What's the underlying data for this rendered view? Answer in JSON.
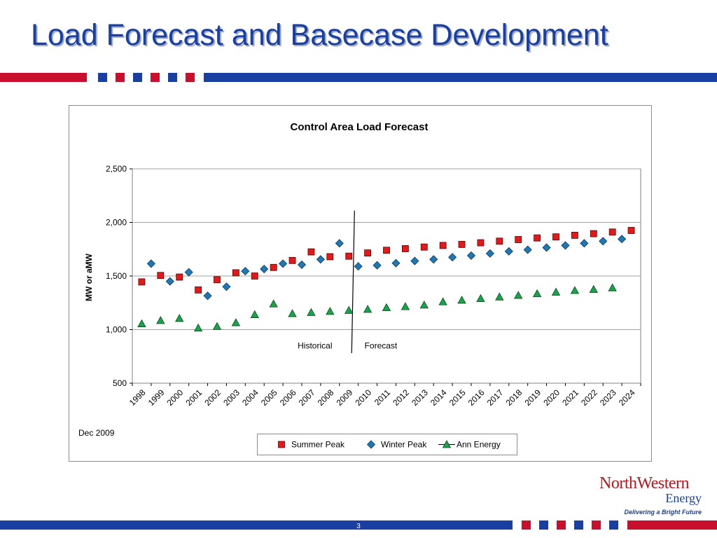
{
  "slide": {
    "title": "Load Forecast and Basecase Development",
    "date_note": "Dec 2009",
    "page_number": "3"
  },
  "logo": {
    "line1": "NorthWestern",
    "line2": "Energy",
    "tagline": "Delivering a Bright Future"
  },
  "colors": {
    "title_blue": "#1a3fa3",
    "bar_red": "#c8102e",
    "bar_blue": "#1a3fa3",
    "summer": "#e31a1c",
    "winter": "#1f78b4",
    "energy": "#1aa34a"
  },
  "chart_data": {
    "type": "scatter",
    "title": "Control Area Load Forecast",
    "ylabel": "MW or aMW",
    "xlabel": "",
    "ylim": [
      500,
      2500
    ],
    "yticks": [
      500,
      1000,
      1500,
      2000,
      2500
    ],
    "ytick_labels": [
      "500",
      "1,000",
      "1,500",
      "2,000",
      "2,500"
    ],
    "categories": [
      "1998",
      "1999",
      "2000",
      "2001",
      "2002",
      "2003",
      "2004",
      "2005",
      "2006",
      "2007",
      "2008",
      "2009",
      "2010",
      "2011",
      "2012",
      "2013",
      "2014",
      "2015",
      "2016",
      "2017",
      "2018",
      "2019",
      "2020",
      "2021",
      "2022",
      "2023",
      "2024"
    ],
    "grid": true,
    "legend_position": "bottom",
    "annotations": [
      {
        "text": "Historical",
        "x_year": 2007.2,
        "y": 850
      },
      {
        "text": "Forecast",
        "x_year": 2010.7,
        "y": 850
      }
    ],
    "divider": {
      "x_start": 2009.3,
      "y_start": 2110,
      "x_end": 2009.15,
      "y_end": 780
    },
    "series": [
      {
        "name": "Summer Peak",
        "marker": "square",
        "x": [
          1998,
          1999,
          2000,
          2001,
          2002,
          2003,
          2004,
          2005,
          2006,
          2007,
          2008,
          2009,
          2010,
          2011,
          2012,
          2013,
          2014,
          2015,
          2016,
          2017,
          2018,
          2019,
          2020,
          2021,
          2022,
          2023,
          2024
        ],
        "values": [
          1445,
          1505,
          1490,
          1370,
          1465,
          1530,
          1500,
          1580,
          1645,
          1725,
          1680,
          1685,
          1715,
          1740,
          1755,
          1770,
          1785,
          1795,
          1810,
          1825,
          1840,
          1855,
          1865,
          1880,
          1895,
          1910,
          1925
        ]
      },
      {
        "name": "Winter Peak",
        "marker": "diamond",
        "x": [
          1998.5,
          1999.5,
          2000.5,
          2001.5,
          2002.5,
          2003.5,
          2004.5,
          2005.5,
          2006.5,
          2007.5,
          2008.5,
          2009.5,
          2010.5,
          2011.5,
          2012.5,
          2013.5,
          2014.5,
          2015.5,
          2016.5,
          2017.5,
          2018.5,
          2019.5,
          2020.5,
          2021.5,
          2022.5,
          2023.5
        ],
        "values": [
          1615,
          1450,
          1535,
          1315,
          1400,
          1545,
          1565,
          1615,
          1605,
          1655,
          1805,
          1590,
          1600,
          1620,
          1640,
          1655,
          1675,
          1690,
          1710,
          1730,
          1745,
          1765,
          1785,
          1805,
          1825,
          1845
        ]
      },
      {
        "name": "Ann Energy",
        "marker": "triangle",
        "x": [
          1998,
          1999,
          2000,
          2001,
          2002,
          2003,
          2004,
          2005,
          2006,
          2007,
          2008,
          2009,
          2010,
          2011,
          2012,
          2013,
          2014,
          2015,
          2016,
          2017,
          2018,
          2019,
          2020,
          2021,
          2022,
          2023
        ],
        "values": [
          1055,
          1085,
          1105,
          1015,
          1030,
          1065,
          1140,
          1240,
          1150,
          1160,
          1170,
          1180,
          1190,
          1205,
          1215,
          1230,
          1260,
          1275,
          1290,
          1305,
          1320,
          1335,
          1350,
          1365,
          1375,
          1390
        ]
      }
    ]
  }
}
